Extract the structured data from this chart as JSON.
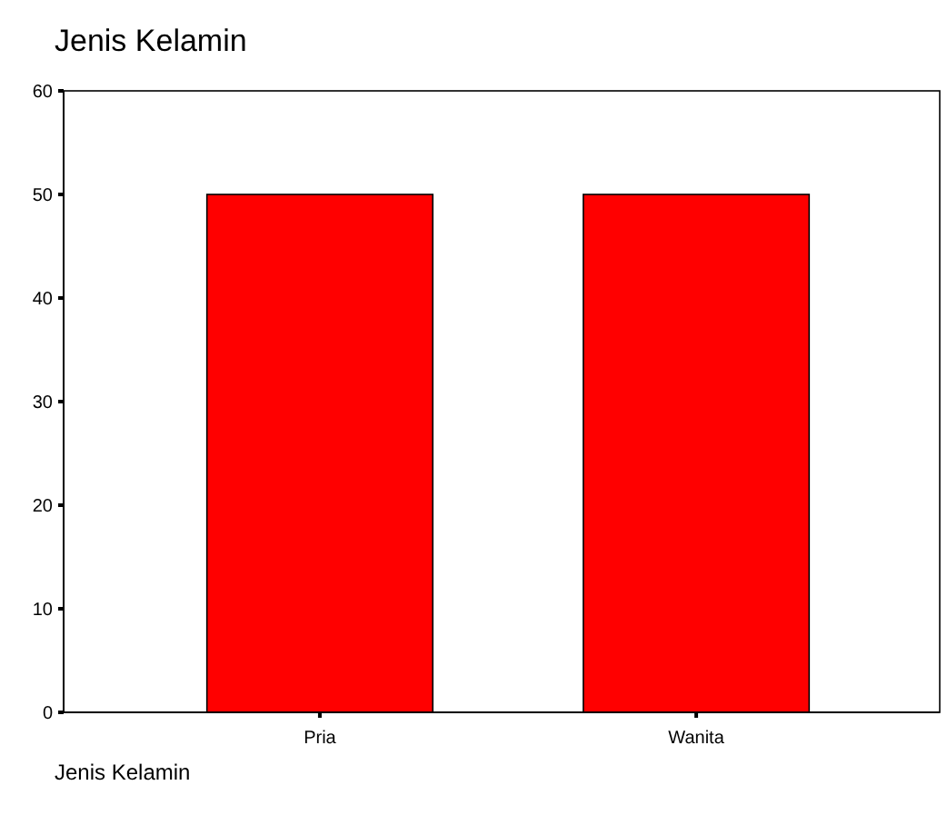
{
  "chart_data": {
    "type": "bar",
    "title": "Jenis Kelamin",
    "xlabel": "Jenis Kelamin",
    "categories": [
      "Pria",
      "Wanita"
    ],
    "values": [
      50,
      50
    ],
    "color": "#ff0000",
    "ylim": [
      0,
      60
    ],
    "yticks": [
      0,
      10,
      20,
      30,
      40,
      50,
      60
    ],
    "grid": false
  }
}
